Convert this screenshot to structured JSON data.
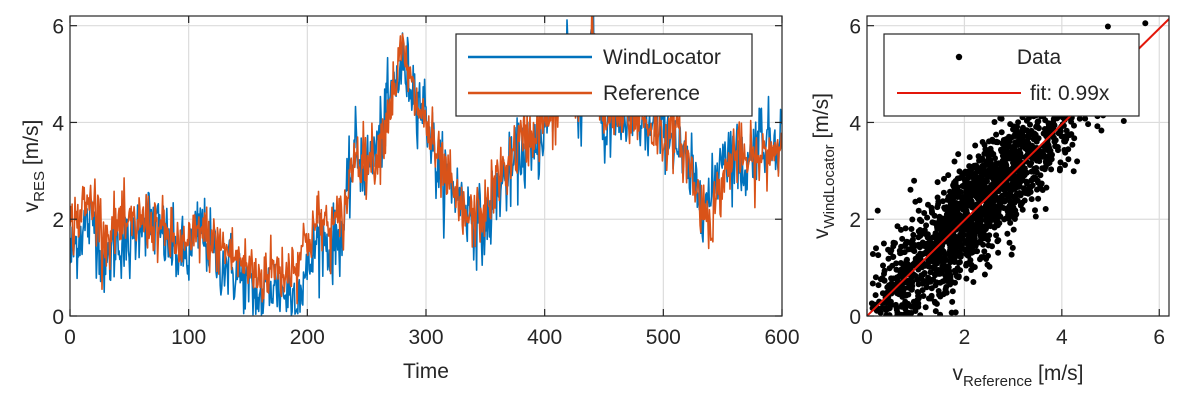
{
  "colors": {
    "wind_locator": "#0072BD",
    "reference": "#D95319",
    "scatter": "#000000",
    "fit_line": "#E3170A",
    "grid": "#DCDCDC",
    "axis": "#262626"
  },
  "chart_data": [
    {
      "type": "line",
      "xlabel": "Time",
      "ylabel": {
        "main": "v",
        "sub": "RES",
        "unit": " [m/s]"
      },
      "xlim": [
        0,
        600
      ],
      "ylim": [
        0,
        6.2
      ],
      "xticks": [
        0,
        100,
        200,
        300,
        400,
        500,
        600
      ],
      "yticks": [
        0,
        2,
        4,
        6
      ],
      "grid": true,
      "legend_position": "top-right",
      "series": [
        {
          "name": "WindLocator",
          "color": "#0072BD",
          "x": [
            0,
            10,
            20,
            30,
            40,
            50,
            60,
            70,
            80,
            90,
            100,
            110,
            120,
            130,
            140,
            150,
            160,
            170,
            180,
            190,
            200,
            210,
            220,
            230,
            240,
            250,
            260,
            270,
            280,
            290,
            300,
            310,
            320,
            330,
            340,
            350,
            360,
            370,
            380,
            390,
            400,
            410,
            420,
            430,
            440,
            450,
            460,
            470,
            480,
            490,
            500,
            510,
            520,
            530,
            540,
            550,
            560,
            570,
            580,
            590,
            600
          ],
          "y": [
            1.2,
            1.8,
            2.0,
            1.0,
            1.6,
            1.4,
            2.1,
            1.9,
            1.6,
            1.3,
            1.2,
            1.9,
            1.3,
            1.1,
            0.9,
            0.6,
            0.3,
            0.7,
            0.5,
            0.4,
            0.9,
            1.7,
            1.4,
            1.8,
            3.5,
            3.0,
            3.6,
            4.5,
            5.2,
            4.7,
            4.2,
            3.0,
            2.8,
            2.4,
            2.0,
            1.8,
            2.6,
            2.9,
            3.4,
            3.2,
            4.0,
            4.6,
            5.8,
            4.2,
            5.6,
            3.7,
            4.1,
            3.9,
            4.1,
            3.8,
            4.0,
            3.6,
            3.0,
            2.6,
            2.3,
            3.5,
            3.3,
            3.0,
            3.8,
            3.6,
            3.8
          ]
        },
        {
          "name": "Reference",
          "color": "#D95319",
          "x": [
            0,
            10,
            20,
            30,
            40,
            50,
            60,
            70,
            80,
            90,
            100,
            110,
            120,
            130,
            140,
            150,
            160,
            170,
            180,
            190,
            200,
            210,
            220,
            230,
            240,
            250,
            260,
            270,
            280,
            290,
            300,
            310,
            320,
            330,
            340,
            350,
            360,
            370,
            380,
            390,
            400,
            410,
            420,
            430,
            440,
            450,
            460,
            470,
            480,
            490,
            500,
            510,
            520,
            530,
            540,
            550,
            560,
            570,
            580,
            590,
            600
          ],
          "y": [
            1.8,
            2.2,
            2.4,
            1.6,
            1.9,
            1.8,
            2.0,
            1.9,
            1.7,
            1.5,
            1.4,
            1.8,
            1.5,
            1.4,
            1.2,
            1.0,
            0.8,
            1.0,
            0.9,
            1.1,
            1.6,
            2.0,
            1.8,
            2.0,
            3.4,
            3.2,
            3.4,
            4.4,
            5.5,
            4.5,
            4.0,
            3.2,
            2.7,
            2.1,
            2.0,
            2.2,
            2.8,
            3.2,
            3.6,
            3.8,
            4.0,
            4.2,
            4.8,
            4.3,
            6.0,
            4.0,
            4.2,
            4.0,
            4.2,
            3.9,
            3.7,
            3.8,
            3.3,
            2.4,
            2.0,
            2.8,
            3.4,
            3.2,
            3.2,
            3.4,
            3.6
          ]
        }
      ]
    },
    {
      "type": "scatter",
      "xlabel": {
        "main": "v",
        "sub": "Reference",
        "unit": " [m/s]"
      },
      "ylabel": {
        "main": "v",
        "sub": "WindLocator",
        "unit": " [m/s]"
      },
      "xlim": [
        0,
        6.2
      ],
      "ylim": [
        0,
        6.2
      ],
      "xticks": [
        0,
        2,
        4,
        6
      ],
      "yticks": [
        0,
        2,
        4,
        6
      ],
      "grid": true,
      "legend_position": "top-right",
      "series": [
        {
          "name": "Data",
          "color": "#000000",
          "count": 1800
        },
        {
          "name": "fit: 0.99x",
          "color": "#E3170A",
          "slope": 0.99
        }
      ]
    }
  ]
}
